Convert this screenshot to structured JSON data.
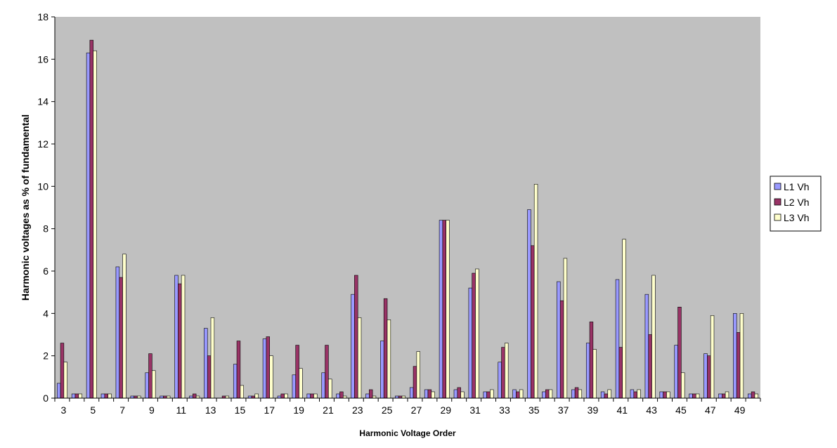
{
  "chart_data": {
    "type": "bar",
    "xlabel": "Harmonic Voltage Order",
    "ylabel": "Harmonic voltages as % of fundamental",
    "ylim": [
      0,
      18
    ],
    "yticks": [
      0,
      2,
      4,
      6,
      8,
      10,
      12,
      14,
      16,
      18
    ],
    "grid": false,
    "legend_position": "right",
    "plot_background": "#c0c0c0",
    "categories": [
      "3",
      "4",
      "5",
      "6",
      "7",
      "8",
      "9",
      "10",
      "11",
      "12",
      "13",
      "14",
      "15",
      "16",
      "17",
      "18",
      "19",
      "20",
      "21",
      "22",
      "23",
      "24",
      "25",
      "26",
      "27",
      "28",
      "29",
      "30",
      "31",
      "32",
      "33",
      "34",
      "35",
      "36",
      "37",
      "38",
      "39",
      "40",
      "41",
      "42",
      "43",
      "44",
      "45",
      "46",
      "47",
      "48",
      "49",
      "50"
    ],
    "tick_labels": [
      "3",
      "",
      "5",
      "",
      "7",
      "",
      "9",
      "",
      "11",
      "",
      "13",
      "",
      "15",
      "",
      "17",
      "",
      "19",
      "",
      "21",
      "",
      "23",
      "",
      "25",
      "",
      "27",
      "",
      "29",
      "",
      "31",
      "",
      "33",
      "",
      "35",
      "",
      "37",
      "",
      "39",
      "",
      "41",
      "",
      "43",
      "",
      "45",
      "",
      "47",
      "",
      "49",
      ""
    ],
    "series": [
      {
        "name": "L1 Vh",
        "color": "#9999ff",
        "values": [
          0.7,
          0.2,
          16.3,
          0.2,
          6.2,
          0.1,
          1.2,
          0.1,
          5.8,
          0.1,
          3.3,
          0.0,
          1.6,
          0.1,
          2.8,
          0.1,
          1.1,
          0.2,
          1.2,
          0.2,
          4.9,
          0.2,
          2.7,
          0.1,
          0.5,
          0.4,
          8.4,
          0.4,
          5.2,
          0.3,
          1.7,
          0.4,
          8.9,
          0.3,
          5.5,
          0.4,
          2.6,
          0.3,
          5.6,
          0.4,
          4.9,
          0.3,
          2.5,
          0.2,
          2.1,
          0.2,
          4.0,
          0.2
        ]
      },
      {
        "name": "L2 Vh",
        "color": "#993366",
        "values": [
          2.6,
          0.2,
          16.9,
          0.2,
          5.7,
          0.1,
          2.1,
          0.1,
          5.4,
          0.2,
          2.0,
          0.1,
          2.7,
          0.1,
          2.9,
          0.2,
          2.5,
          0.2,
          2.5,
          0.3,
          5.8,
          0.4,
          4.7,
          0.1,
          1.5,
          0.4,
          8.4,
          0.5,
          5.9,
          0.3,
          2.4,
          0.3,
          7.2,
          0.4,
          4.6,
          0.5,
          3.6,
          0.2,
          2.4,
          0.3,
          3.0,
          0.3,
          4.3,
          0.2,
          2.0,
          0.2,
          3.1,
          0.3
        ]
      },
      {
        "name": "L3 Vh",
        "color": "#ffffcc",
        "values": [
          1.7,
          0.2,
          16.4,
          0.2,
          6.8,
          0.1,
          1.3,
          0.1,
          5.8,
          0.1,
          3.8,
          0.1,
          0.6,
          0.2,
          2.0,
          0.2,
          1.4,
          0.2,
          0.9,
          0.1,
          3.8,
          0.1,
          3.7,
          0.1,
          2.2,
          0.3,
          8.4,
          0.3,
          6.1,
          0.4,
          2.6,
          0.4,
          10.1,
          0.4,
          6.6,
          0.4,
          2.3,
          0.4,
          7.5,
          0.4,
          5.8,
          0.3,
          1.2,
          0.2,
          3.9,
          0.3,
          4.0,
          0.2
        ]
      }
    ]
  }
}
